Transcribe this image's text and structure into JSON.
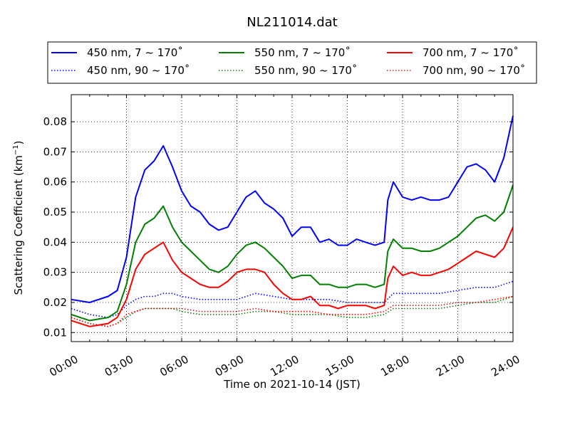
{
  "chart_data": {
    "type": "line",
    "title": "NL211014.dat",
    "xlabel": "Time on 2021-10-14 (JST)",
    "ylabel_main": "Scattering Coefficient (km",
    "ylabel_sup": "−1",
    "ylabel_close": ")",
    "xlim": [
      "00:00",
      "24:00"
    ],
    "ylim": [
      0.007,
      0.089
    ],
    "x_ticks": [
      "00:00",
      "03:00",
      "06:00",
      "09:00",
      "12:00",
      "15:00",
      "18:00",
      "21:00",
      "24:00"
    ],
    "y_ticks": [
      "0.01",
      "0.02",
      "0.03",
      "0.04",
      "0.05",
      "0.06",
      "0.07",
      "0.08"
    ],
    "grid": true,
    "legend_position": "top",
    "series": [
      {
        "name": "450 nm, 7 ~ 170˚",
        "color": "#0000ff",
        "style": "solid",
        "x": [
          0,
          1,
          2,
          2.5,
          3,
          3.5,
          4,
          4.5,
          5,
          5.5,
          6,
          6.5,
          7,
          7.5,
          8,
          8.5,
          9,
          9.5,
          10,
          10.5,
          11,
          11.5,
          12,
          12.5,
          13,
          13.5,
          14,
          14.5,
          15,
          15.5,
          16,
          16.5,
          17,
          17.2,
          17.5,
          18,
          18.5,
          19,
          19.5,
          20,
          20.5,
          21,
          21.5,
          22,
          22.5,
          23,
          23.5,
          24
        ],
        "y": [
          0.021,
          0.02,
          0.022,
          0.024,
          0.035,
          0.055,
          0.064,
          0.067,
          0.072,
          0.065,
          0.057,
          0.052,
          0.05,
          0.046,
          0.044,
          0.045,
          0.05,
          0.055,
          0.057,
          0.053,
          0.051,
          0.048,
          0.042,
          0.045,
          0.045,
          0.04,
          0.041,
          0.039,
          0.039,
          0.041,
          0.04,
          0.039,
          0.04,
          0.054,
          0.06,
          0.055,
          0.054,
          0.055,
          0.054,
          0.054,
          0.055,
          0.06,
          0.065,
          0.066,
          0.064,
          0.06,
          0.068,
          0.082
        ]
      },
      {
        "name": "550 nm, 7 ~ 170˚",
        "color": "#008000",
        "style": "solid",
        "x": [
          0,
          1,
          2,
          2.5,
          3,
          3.5,
          4,
          4.5,
          5,
          5.5,
          6,
          6.5,
          7,
          7.5,
          8,
          8.5,
          9,
          9.5,
          10,
          10.5,
          11,
          11.5,
          12,
          12.5,
          13,
          13.5,
          14,
          14.5,
          15,
          15.5,
          16,
          16.5,
          17,
          17.2,
          17.5,
          18,
          18.5,
          19,
          19.5,
          20,
          20.5,
          21,
          21.5,
          22,
          22.5,
          23,
          23.5,
          24
        ],
        "y": [
          0.016,
          0.014,
          0.015,
          0.017,
          0.026,
          0.04,
          0.046,
          0.048,
          0.052,
          0.045,
          0.04,
          0.037,
          0.034,
          0.031,
          0.03,
          0.032,
          0.036,
          0.039,
          0.04,
          0.038,
          0.035,
          0.032,
          0.028,
          0.029,
          0.029,
          0.026,
          0.026,
          0.025,
          0.025,
          0.026,
          0.026,
          0.025,
          0.026,
          0.037,
          0.041,
          0.038,
          0.038,
          0.037,
          0.037,
          0.038,
          0.04,
          0.042,
          0.045,
          0.048,
          0.049,
          0.047,
          0.05,
          0.059
        ]
      },
      {
        "name": "700 nm, 7 ~ 170˚",
        "color": "#ff0000",
        "style": "solid",
        "x": [
          0,
          1,
          2,
          2.5,
          3,
          3.5,
          4,
          4.5,
          5,
          5.5,
          6,
          6.5,
          7,
          7.5,
          8,
          8.5,
          9,
          9.5,
          10,
          10.5,
          11,
          11.5,
          12,
          12.5,
          13,
          13.5,
          14,
          14.5,
          15,
          15.5,
          16,
          16.5,
          17,
          17.2,
          17.5,
          18,
          18.5,
          19,
          19.5,
          20,
          20.5,
          21,
          21.5,
          22,
          22.5,
          23,
          23.5,
          24
        ],
        "y": [
          0.014,
          0.012,
          0.013,
          0.015,
          0.021,
          0.031,
          0.036,
          0.038,
          0.04,
          0.034,
          0.03,
          0.028,
          0.026,
          0.025,
          0.025,
          0.027,
          0.03,
          0.031,
          0.031,
          0.03,
          0.026,
          0.023,
          0.021,
          0.021,
          0.022,
          0.019,
          0.019,
          0.018,
          0.019,
          0.019,
          0.019,
          0.018,
          0.019,
          0.028,
          0.032,
          0.029,
          0.03,
          0.029,
          0.029,
          0.03,
          0.031,
          0.033,
          0.035,
          0.037,
          0.036,
          0.035,
          0.038,
          0.045
        ]
      },
      {
        "name": "450 nm, 90 ~ 170˚",
        "color": "#0000ff",
        "style": "dotted",
        "x": [
          0,
          1,
          2,
          2.5,
          3,
          3.5,
          4,
          4.5,
          5,
          5.5,
          6,
          7,
          8,
          9,
          10,
          11,
          12,
          13,
          14,
          15,
          16,
          17,
          17.5,
          18,
          19,
          20,
          21,
          22,
          23,
          24
        ],
        "y": [
          0.018,
          0.016,
          0.015,
          0.016,
          0.019,
          0.021,
          0.022,
          0.022,
          0.023,
          0.023,
          0.022,
          0.021,
          0.021,
          0.021,
          0.023,
          0.022,
          0.021,
          0.021,
          0.021,
          0.02,
          0.02,
          0.02,
          0.023,
          0.023,
          0.023,
          0.023,
          0.024,
          0.025,
          0.025,
          0.027
        ]
      },
      {
        "name": "550 nm, 90 ~ 170˚",
        "color": "#008000",
        "style": "dotted",
        "x": [
          0,
          1,
          2,
          2.5,
          3,
          3.5,
          4,
          4.5,
          5,
          5.5,
          6,
          7,
          8,
          9,
          10,
          11,
          12,
          13,
          14,
          15,
          16,
          17,
          17.5,
          18,
          19,
          20,
          21,
          22,
          23,
          24
        ],
        "y": [
          0.015,
          0.013,
          0.012,
          0.013,
          0.015,
          0.017,
          0.018,
          0.018,
          0.018,
          0.018,
          0.017,
          0.016,
          0.016,
          0.016,
          0.017,
          0.017,
          0.016,
          0.016,
          0.016,
          0.015,
          0.015,
          0.016,
          0.018,
          0.018,
          0.018,
          0.018,
          0.019,
          0.02,
          0.02,
          0.022
        ]
      },
      {
        "name": "700 nm, 90 ~ 170˚",
        "color": "#ff0000",
        "style": "dotted",
        "x": [
          0,
          1,
          2,
          2.5,
          3,
          3.5,
          4,
          4.5,
          5,
          5.5,
          6,
          7,
          8,
          9,
          10,
          11,
          12,
          13,
          14,
          15,
          16,
          17,
          17.5,
          18,
          19,
          20,
          21,
          22,
          23,
          24
        ],
        "y": [
          0.015,
          0.013,
          0.012,
          0.013,
          0.016,
          0.017,
          0.018,
          0.018,
          0.018,
          0.018,
          0.018,
          0.017,
          0.017,
          0.017,
          0.018,
          0.017,
          0.017,
          0.017,
          0.016,
          0.016,
          0.016,
          0.017,
          0.019,
          0.019,
          0.019,
          0.019,
          0.02,
          0.02,
          0.021,
          0.022
        ]
      }
    ]
  }
}
